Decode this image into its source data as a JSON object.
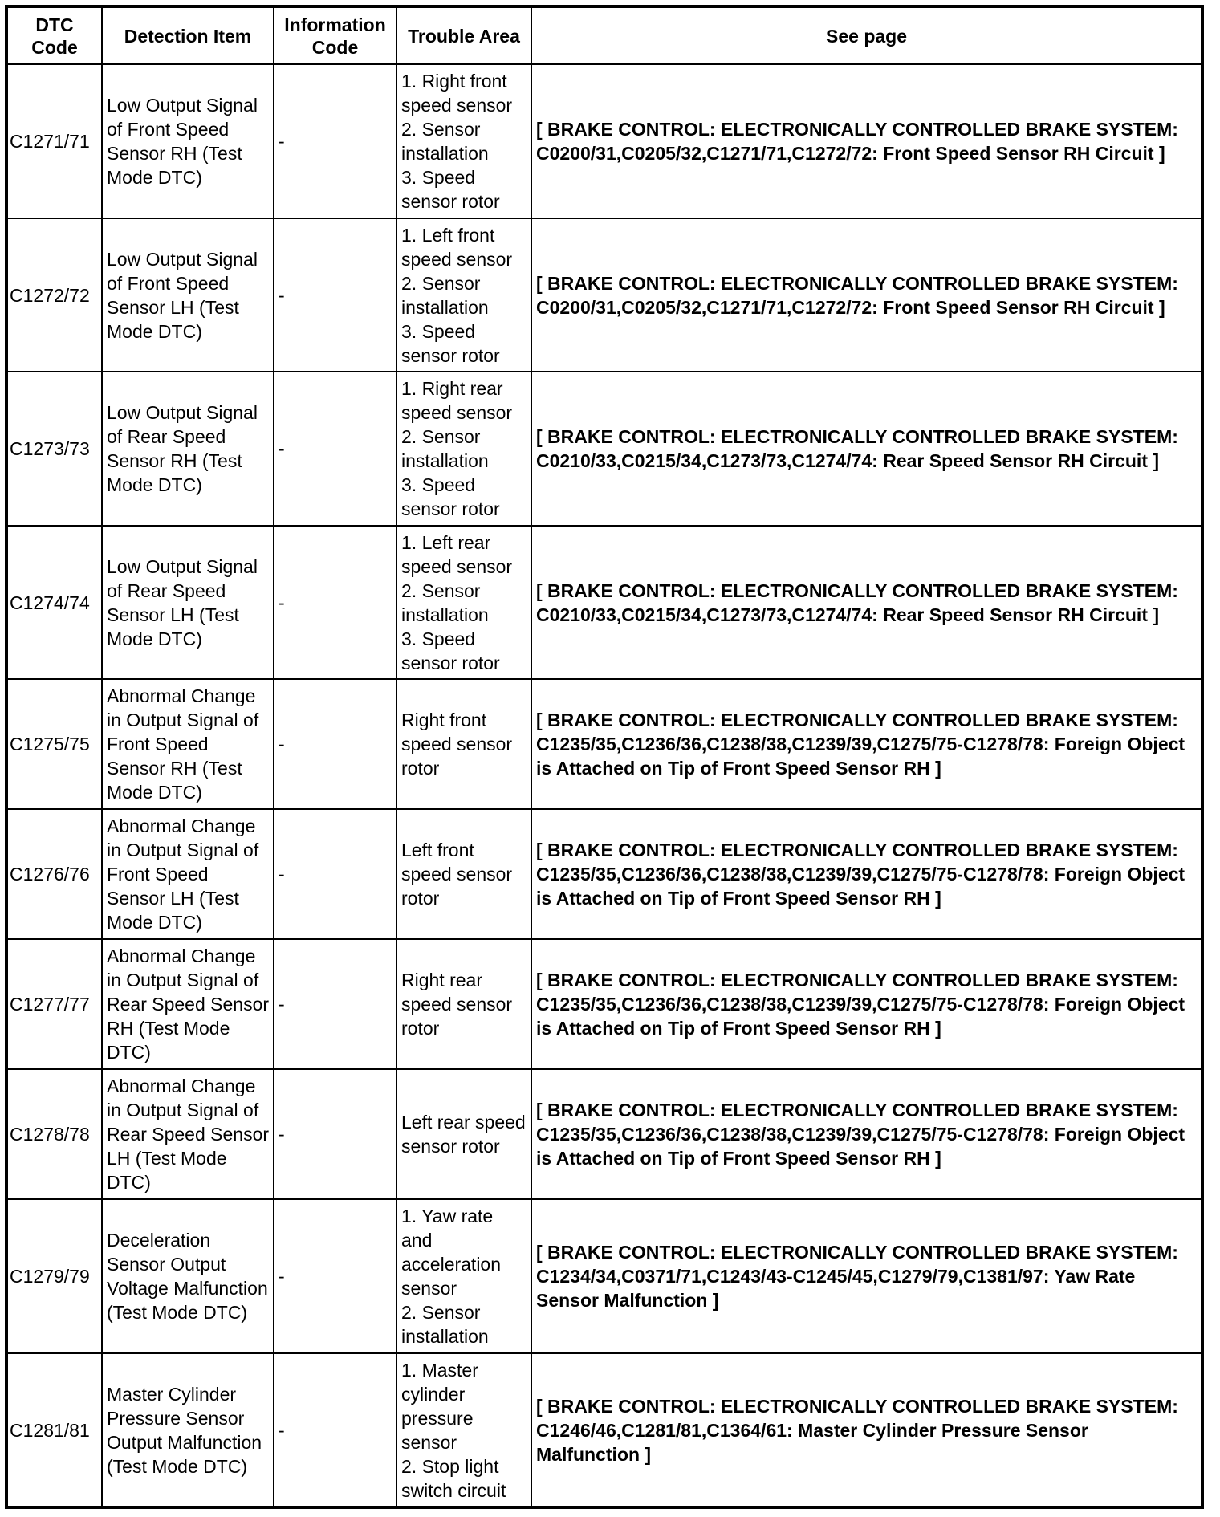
{
  "headers": [
    "DTC Code",
    "Detection Item",
    "Information Code",
    "Trouble Area",
    "See page"
  ],
  "rows": [
    {
      "code": "C1271/71",
      "item": "Low Output Signal of Front Speed Sensor RH (Test Mode DTC)",
      "info": "-",
      "area": "1. Right front speed sensor\n2. Sensor installation\n3. Speed sensor rotor",
      "see": "[ BRAKE CONTROL: ELECTRONICALLY CONTROLLED BRAKE SYSTEM: C0200/31,C0205/32,C1271/71,C1272/72: Front Speed Sensor RH Circuit ]"
    },
    {
      "code": "C1272/72",
      "item": "Low Output Signal of Front Speed Sensor LH (Test Mode DTC)",
      "info": "-",
      "area": "1. Left front speed sensor\n2. Sensor installation\n3. Speed sensor rotor",
      "see": "[ BRAKE CONTROL: ELECTRONICALLY CONTROLLED BRAKE SYSTEM: C0200/31,C0205/32,C1271/71,C1272/72: Front Speed Sensor RH Circuit ]"
    },
    {
      "code": "C1273/73",
      "item": "Low Output Signal of Rear Speed Sensor RH (Test Mode DTC)",
      "info": "-",
      "area": "1. Right rear speed sensor\n2. Sensor installation\n3. Speed sensor rotor",
      "see": "[ BRAKE CONTROL: ELECTRONICALLY CONTROLLED BRAKE SYSTEM: C0210/33,C0215/34,C1273/73,C1274/74: Rear Speed Sensor RH Circuit ]"
    },
    {
      "code": "C1274/74",
      "item": "Low Output Signal of Rear Speed Sensor LH (Test Mode DTC)",
      "info": "-",
      "area": "1. Left rear speed sensor\n2. Sensor installation\n3. Speed sensor rotor",
      "see": "[ BRAKE CONTROL: ELECTRONICALLY CONTROLLED BRAKE SYSTEM: C0210/33,C0215/34,C1273/73,C1274/74: Rear Speed Sensor RH Circuit ]"
    },
    {
      "code": "C1275/75",
      "item": "Abnormal Change in Output Signal of Front Speed Sensor RH (Test Mode DTC)",
      "info": "-",
      "area": "Right front speed sensor rotor",
      "see": "[ BRAKE CONTROL: ELECTRONICALLY CONTROLLED BRAKE SYSTEM: C1235/35,C1236/36,C1238/38,C1239/39,C1275/75-C1278/78: Foreign Object is Attached on Tip of Front Speed Sensor RH ]"
    },
    {
      "code": "C1276/76",
      "item": "Abnormal Change in Output Signal of Front Speed Sensor LH (Test Mode DTC)",
      "info": "-",
      "area": "Left front speed sensor rotor",
      "see": "[ BRAKE CONTROL: ELECTRONICALLY CONTROLLED BRAKE SYSTEM: C1235/35,C1236/36,C1238/38,C1239/39,C1275/75-C1278/78: Foreign Object is Attached on Tip of Front Speed Sensor RH ]"
    },
    {
      "code": "C1277/77",
      "item": "Abnormal Change in Output Signal of Rear Speed Sensor RH (Test Mode DTC)",
      "info": "-",
      "area": "Right rear speed sensor rotor",
      "see": "[ BRAKE CONTROL: ELECTRONICALLY CONTROLLED BRAKE SYSTEM: C1235/35,C1236/36,C1238/38,C1239/39,C1275/75-C1278/78: Foreign Object is Attached on Tip of Front Speed Sensor RH ]"
    },
    {
      "code": "C1278/78",
      "item": "Abnormal Change in Output Signal of Rear Speed Sensor LH (Test Mode DTC)",
      "info": "-",
      "area": "Left rear speed sensor rotor",
      "see": "[ BRAKE CONTROL: ELECTRONICALLY CONTROLLED BRAKE SYSTEM: C1235/35,C1236/36,C1238/38,C1239/39,C1275/75-C1278/78: Foreign Object is Attached on Tip of Front Speed Sensor RH ]"
    },
    {
      "code": "C1279/79",
      "item": "Deceleration Sensor Output Voltage Malfunction (Test Mode DTC)",
      "info": "-",
      "area": "1. Yaw rate and acceleration sensor\n2. Sensor installation",
      "see": "[ BRAKE CONTROL: ELECTRONICALLY CONTROLLED BRAKE SYSTEM: C1234/34,C0371/71,C1243/43-C1245/45,C1279/79,C1381/97: Yaw Rate Sensor Malfunction ]"
    },
    {
      "code": "C1281/81",
      "item": "Master Cylinder Pressure Sensor Output Malfunction (Test Mode DTC)",
      "info": "-",
      "area": "1. Master cylinder pressure sensor\n2. Stop light switch circuit",
      "see": "[ BRAKE CONTROL: ELECTRONICALLY CONTROLLED BRAKE SYSTEM: C1246/46,C1281/81,C1364/61: Master Cylinder Pressure Sensor Malfunction ]"
    }
  ]
}
